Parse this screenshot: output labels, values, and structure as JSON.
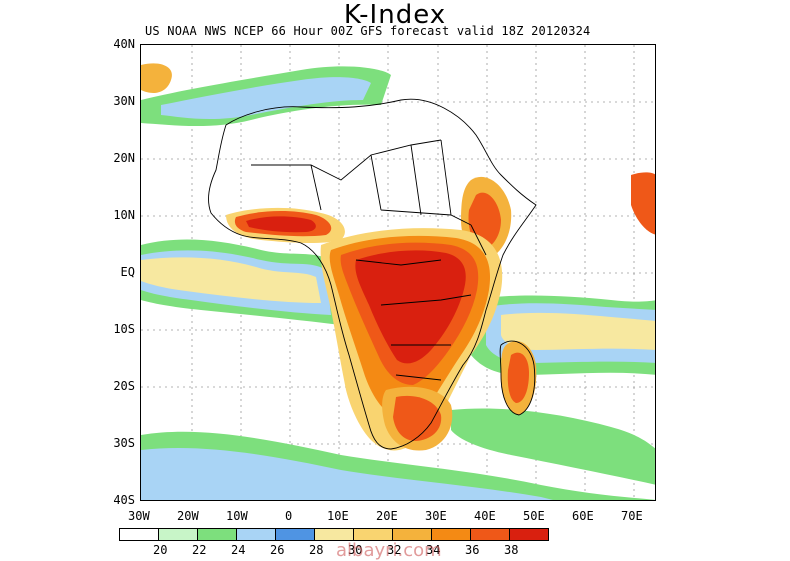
{
  "title": "K-Index",
  "subtitle": "US NOAA NWS NCEP 66 Hour 00Z GFS forecast valid 18Z 20120324",
  "lat_labels": [
    "40N",
    "30N",
    "20N",
    "10N",
    "EQ",
    "10S",
    "20S",
    "30S",
    "40S"
  ],
  "lon_labels": [
    "30W",
    "20W",
    "10W",
    "0",
    "10E",
    "20E",
    "30E",
    "40E",
    "50E",
    "60E",
    "70E"
  ],
  "colorbar": {
    "colors": [
      "#ffffff",
      "#c8f5c8",
      "#7ddf7d",
      "#a9d4f5",
      "#4f94e3",
      "#f7e8a0",
      "#f9d470",
      "#f4b23c",
      "#f48a14",
      "#ef5818",
      "#d9200f"
    ],
    "labels": [
      "20",
      "22",
      "24",
      "26",
      "28",
      "30",
      "32",
      "34",
      "36",
      "38"
    ]
  },
  "watermark": "albayri.com"
}
